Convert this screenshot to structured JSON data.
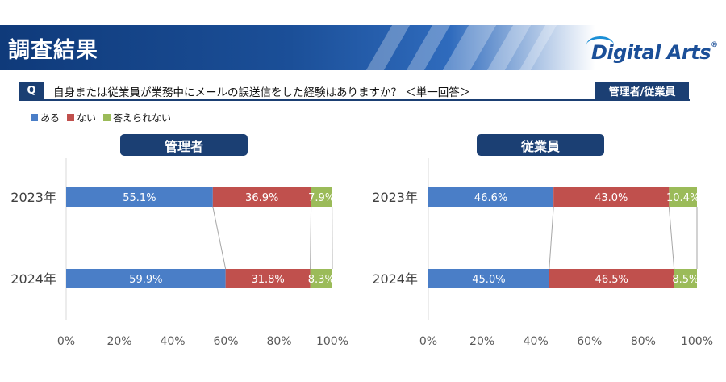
{
  "header": {
    "title": "調査結果",
    "logo_text": "Digital Arts",
    "logo_mark": "®"
  },
  "question": {
    "marker": "Q",
    "text": "自身または従業員が業務中にメールの誤送信をした経験はありますか？ ＜単一回答＞",
    "respondents_label": "管理者/従業員"
  },
  "legend": [
    {
      "label": "ある",
      "color": "#4a7ec7"
    },
    {
      "label": "ない",
      "color": "#c0504d"
    },
    {
      "label": "答えられない",
      "color": "#9bbb59"
    }
  ],
  "chart_data": [
    {
      "type": "bar",
      "orientation": "horizontal",
      "stacked": true,
      "title": "管理者",
      "categories": [
        "2023年",
        "2024年"
      ],
      "series": [
        {
          "name": "ある",
          "values": [
            55.1,
            59.9
          ],
          "labels": [
            "55.1%",
            "59.9%"
          ]
        },
        {
          "name": "ない",
          "values": [
            36.9,
            31.8
          ],
          "labels": [
            "36.9%",
            "31.8%"
          ]
        },
        {
          "name": "答えられない",
          "values": [
            7.9,
            8.3
          ],
          "labels": [
            "7.9%",
            "8.3%"
          ]
        }
      ],
      "xlim": [
        0,
        100
      ],
      "xticks": [
        "0%",
        "20%",
        "40%",
        "60%",
        "80%",
        "100%"
      ],
      "grid": false,
      "legend": "top-left"
    },
    {
      "type": "bar",
      "orientation": "horizontal",
      "stacked": true,
      "title": "従業員",
      "categories": [
        "2023年",
        "2024年"
      ],
      "series": [
        {
          "name": "ある",
          "values": [
            46.6,
            45.0
          ],
          "labels": [
            "46.6%",
            "45.0%"
          ]
        },
        {
          "name": "ない",
          "values": [
            43.0,
            46.5
          ],
          "labels": [
            "43.0%",
            "46.5%"
          ]
        },
        {
          "name": "答えられない",
          "values": [
            10.4,
            8.5
          ],
          "labels": [
            "10.4%",
            "8.5%"
          ]
        }
      ],
      "xlim": [
        0,
        100
      ],
      "xticks": [
        "0%",
        "20%",
        "40%",
        "60%",
        "80%",
        "100%"
      ],
      "grid": false,
      "legend": "top-left"
    }
  ]
}
